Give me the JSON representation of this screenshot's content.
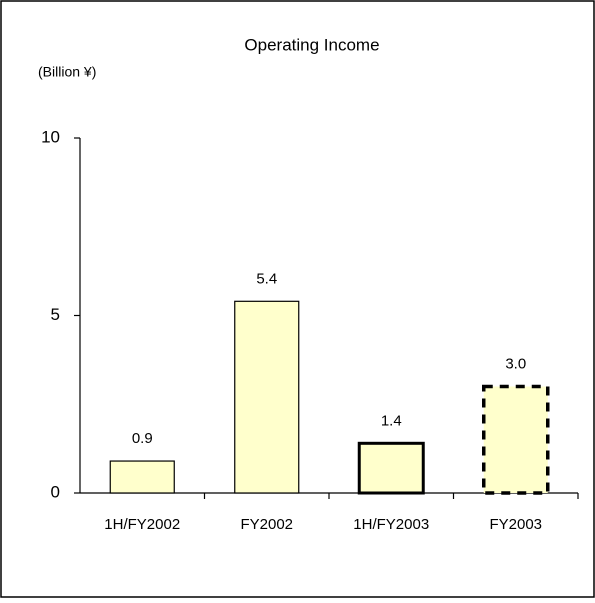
{
  "chart_data": {
    "type": "bar",
    "title": "Operating Income",
    "y_label": "(Billion ¥)",
    "categories": [
      "1H/FY2002",
      "FY2002",
      "1H/FY2003",
      "FY2003"
    ],
    "values": [
      0.9,
      5.4,
      1.4,
      3.0
    ],
    "value_labels": [
      "0.9",
      "5.4",
      "1.4",
      "3.0"
    ],
    "color": "#ffffcc",
    "border_styles": [
      "thin",
      "thin",
      "bold",
      "dashed"
    ],
    "ylim": [
      0,
      10
    ],
    "yticks": [
      0,
      5,
      10
    ],
    "grid": false
  }
}
